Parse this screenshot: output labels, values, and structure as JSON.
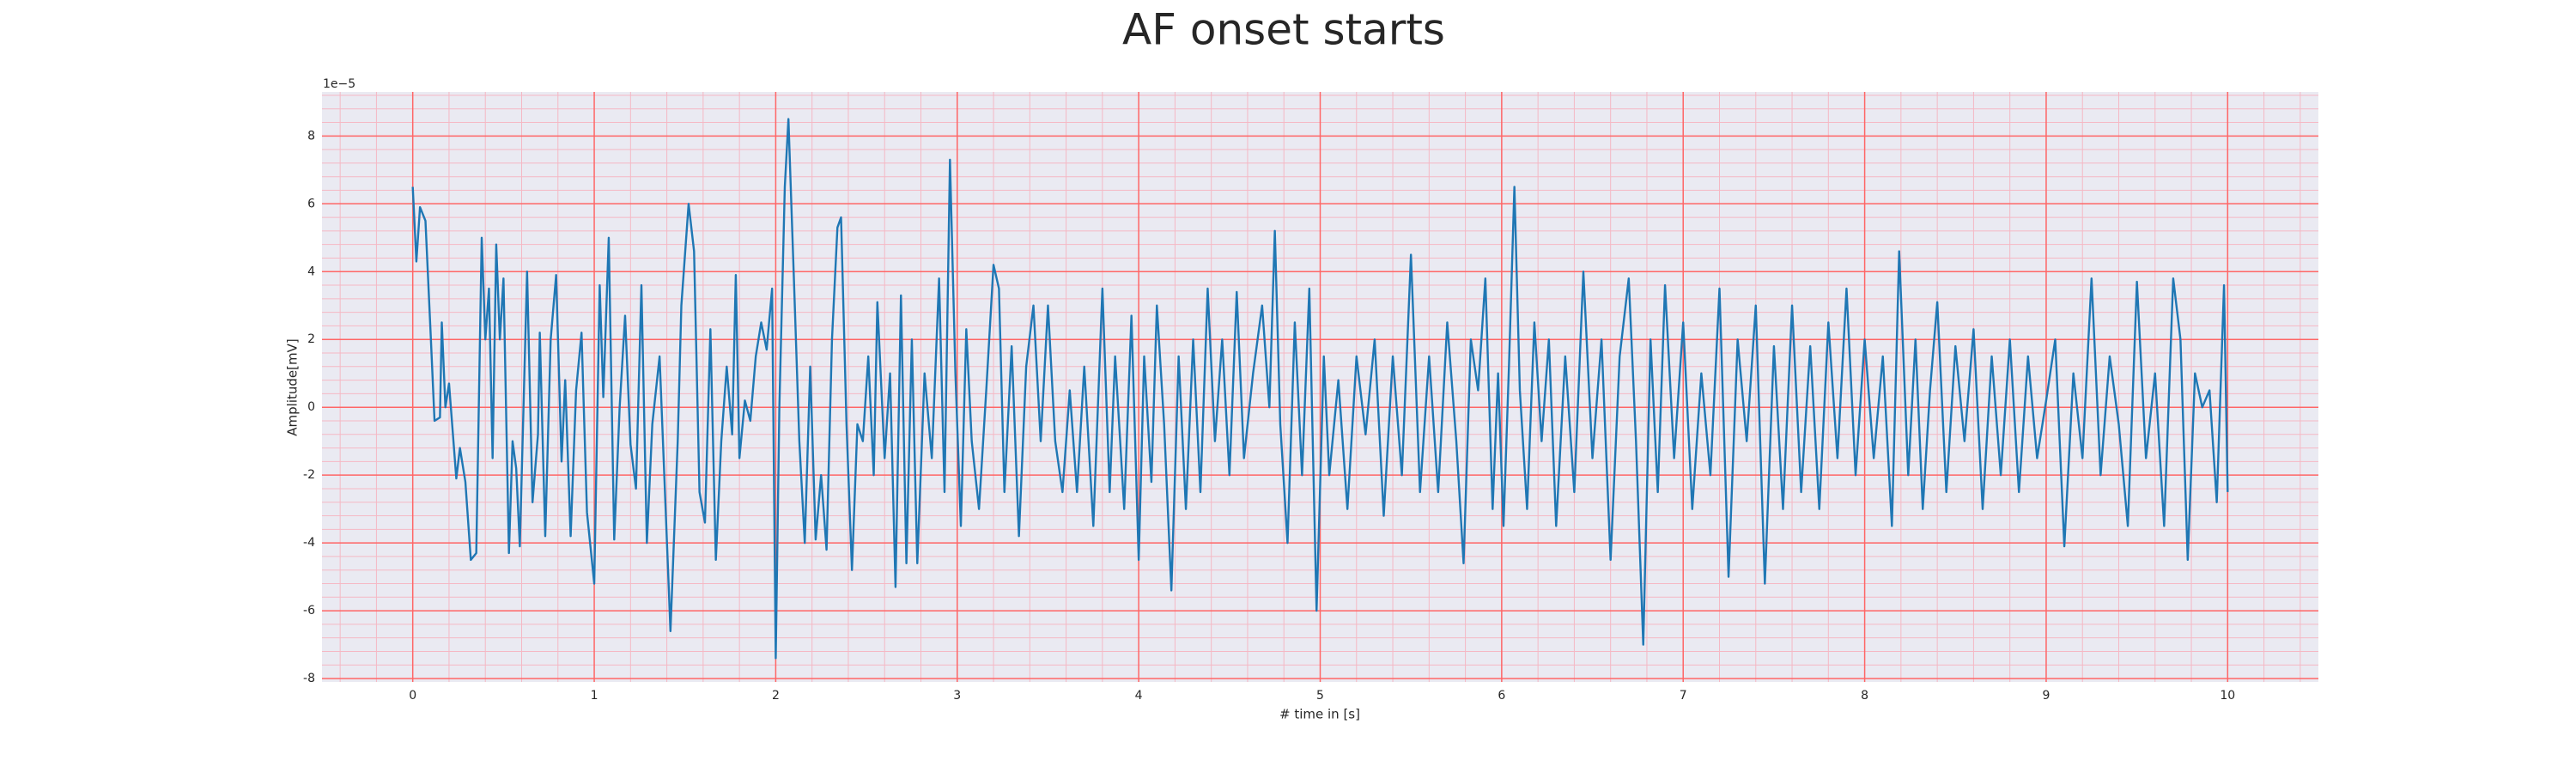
{
  "chart_data": {
    "type": "line",
    "title": "AF onset starts",
    "xlabel": "# time in [s]",
    "ylabel": "Amplitude[mV]",
    "y_offset_label": "1e−5",
    "color": "#1f77b4",
    "background": "#eaeaf2",
    "grid": true,
    "grid_color": "#ff6666",
    "minor_grid_color": "#f5b8c4",
    "xlim": [
      -0.5,
      10.5
    ],
    "ylim": [
      -8.1,
      9.3
    ],
    "xticks": [
      0,
      1,
      2,
      3,
      4,
      5,
      6,
      7,
      8,
      9,
      10
    ],
    "yticks": [
      -8,
      -6,
      -4,
      -2,
      0,
      2,
      4,
      6,
      8
    ],
    "xminorticks": [
      -0.4,
      -0.2,
      0.2,
      0.4,
      0.6,
      0.8,
      1.2,
      1.4,
      1.6,
      1.8,
      2.2,
      2.4,
      2.6,
      2.8,
      3.2,
      3.4,
      3.6,
      3.8,
      4.2,
      4.4,
      4.6,
      4.8,
      5.2,
      5.4,
      5.6,
      5.8,
      6.2,
      6.4,
      6.6,
      6.8,
      7.2,
      7.4,
      7.6,
      7.8,
      8.2,
      8.4,
      8.6,
      8.8,
      9.2,
      9.4,
      9.6,
      9.8,
      10.2,
      10.4
    ],
    "yminorticks": [
      -7.6,
      -7.2,
      -6.8,
      -6.4,
      -5.6,
      -5.2,
      -4.8,
      -4.4,
      -3.6,
      -3.2,
      -2.8,
      -2.4,
      -1.6,
      -1.2,
      -0.8,
      -0.4,
      0.4,
      0.8,
      1.2,
      1.6,
      2.4,
      2.8,
      3.2,
      3.6,
      4.4,
      4.8,
      5.2,
      5.6,
      6.4,
      6.8,
      7.2,
      7.6,
      8.4,
      8.8,
      9.2
    ],
    "x": [
      0,
      0.02,
      0.04,
      0.07,
      0.1,
      0.12,
      0.15,
      0.16,
      0.18,
      0.2,
      0.24,
      0.26,
      0.29,
      0.32,
      0.35,
      0.38,
      0.4,
      0.42,
      0.44,
      0.46,
      0.48,
      0.5,
      0.53,
      0.55,
      0.57,
      0.59,
      0.63,
      0.66,
      0.69,
      0.7,
      0.73,
      0.76,
      0.79,
      0.82,
      0.84,
      0.87,
      0.9,
      0.93,
      0.96,
      1.0,
      1.03,
      1.05,
      1.08,
      1.11,
      1.14,
      1.17,
      1.2,
      1.23,
      1.26,
      1.29,
      1.32,
      1.36,
      1.42,
      1.46,
      1.48,
      1.52,
      1.55,
      1.58,
      1.61,
      1.64,
      1.67,
      1.7,
      1.73,
      1.76,
      1.78,
      1.8,
      1.83,
      1.86,
      1.89,
      1.92,
      1.95,
      1.98,
      2.0,
      2.02,
      2.05,
      2.07,
      2.1,
      2.13,
      2.16,
      2.19,
      2.22,
      2.25,
      2.28,
      2.31,
      2.34,
      2.36,
      2.39,
      2.42,
      2.45,
      2.48,
      2.51,
      2.54,
      2.56,
      2.6,
      2.63,
      2.66,
      2.69,
      2.72,
      2.75,
      2.78,
      2.82,
      2.86,
      2.9,
      2.93,
      2.96,
      2.99,
      3.02,
      3.05,
      3.08,
      3.12,
      3.16,
      3.2,
      3.23,
      3.26,
      3.3,
      3.34,
      3.38,
      3.42,
      3.46,
      3.5,
      3.54,
      3.58,
      3.62,
      3.66,
      3.7,
      3.75,
      3.8,
      3.84,
      3.87,
      3.92,
      3.96,
      4.0,
      4.03,
      4.07,
      4.1,
      4.14,
      4.18,
      4.22,
      4.26,
      4.3,
      4.34,
      4.38,
      4.42,
      4.46,
      4.5,
      4.54,
      4.58,
      4.63,
      4.68,
      4.72,
      4.75,
      4.78,
      4.82,
      4.86,
      4.9,
      4.94,
      4.98,
      5.02,
      5.05,
      5.1,
      5.15,
      5.2,
      5.25,
      5.3,
      5.35,
      5.4,
      5.45,
      5.5,
      5.55,
      5.6,
      5.65,
      5.7,
      5.75,
      5.79,
      5.83,
      5.87,
      5.91,
      5.95,
      5.98,
      6.01,
      6.04,
      6.07,
      6.1,
      6.14,
      6.18,
      6.22,
      6.26,
      6.3,
      6.35,
      6.4,
      6.45,
      6.5,
      6.55,
      6.6,
      6.65,
      6.7,
      6.74,
      6.78,
      6.82,
      6.86,
      6.9,
      6.95,
      7.0,
      7.05,
      7.1,
      7.15,
      7.2,
      7.25,
      7.3,
      7.35,
      7.4,
      7.45,
      7.5,
      7.55,
      7.6,
      7.65,
      7.7,
      7.75,
      7.8,
      7.85,
      7.9,
      7.95,
      8.0,
      8.05,
      8.1,
      8.15,
      8.19,
      8.24,
      8.28,
      8.32,
      8.36,
      8.4,
      8.45,
      8.5,
      8.55,
      8.6,
      8.65,
      8.7,
      8.75,
      8.8,
      8.85,
      8.9,
      8.95,
      9.0,
      9.05,
      9.1,
      9.15,
      9.2,
      9.25,
      9.3,
      9.35,
      9.4,
      9.45,
      9.5,
      9.55,
      9.6,
      9.65,
      9.7,
      9.74,
      9.78,
      9.82,
      9.86,
      9.9,
      9.94,
      9.98,
      10.0
    ],
    "values": [
      6.5,
      4.3,
      5.9,
      5.5,
      2,
      -0.4,
      -0.3,
      2.5,
      0,
      0.7,
      -2.1,
      -1.2,
      -2.2,
      -4.5,
      -4.3,
      5.0,
      2,
      3.5,
      -1.5,
      4.8,
      2,
      3.8,
      -4.3,
      -1,
      -1.8,
      -4.1,
      4.0,
      -2.8,
      -0.8,
      2.2,
      -3.8,
      2,
      3.9,
      -1.6,
      0.8,
      -3.8,
      0.5,
      2.2,
      -3.1,
      -5.2,
      3.6,
      0.3,
      5.0,
      -3.9,
      0,
      2.7,
      -1.1,
      -2.4,
      3.6,
      -4.0,
      -0.5,
      1.5,
      -6.6,
      -1,
      3.0,
      6.0,
      4.6,
      -2.5,
      -3.4,
      2.3,
      -4.5,
      -1,
      1.2,
      -0.8,
      3.9,
      -1.5,
      0.2,
      -0.4,
      1.5,
      2.5,
      1.7,
      3.5,
      -7.4,
      0,
      6.5,
      8.5,
      3.8,
      -1,
      -4.0,
      1.2,
      -3.9,
      -2.0,
      -4.2,
      2.0,
      5.3,
      5.6,
      -0.5,
      -4.8,
      -0.5,
      -1,
      1.5,
      -2,
      3.1,
      -1.5,
      1.0,
      -5.3,
      3.3,
      -4.6,
      2.0,
      -4.6,
      1,
      -1.5,
      3.8,
      -2.5,
      7.3,
      1,
      -3.5,
      2.3,
      -1,
      -3.0,
      0.5,
      4.2,
      3.5,
      -2.5,
      1.8,
      -3.8,
      1.2,
      3.0,
      -1.0,
      3.0,
      -1,
      -2.5,
      0.5,
      -2.5,
      1.2,
      -3.5,
      3.5,
      -2.5,
      1.5,
      -3,
      2.7,
      -4.5,
      1.5,
      -2.2,
      3,
      -0.5,
      -5.4,
      1.5,
      -3.0,
      2.0,
      -2.5,
      3.5,
      -1,
      2.0,
      -2.0,
      3.4,
      -1.5,
      1.0,
      3.0,
      0,
      5.2,
      -0.5,
      -4.0,
      2.5,
      -2.0,
      3.5,
      -6.0,
      1.5,
      -2.0,
      0.8,
      -3.0,
      1.5,
      -0.8,
      2.0,
      -3.2,
      1.5,
      -2.0,
      4.5,
      -2.5,
      1.5,
      -2.5,
      2.5,
      -1,
      -4.6,
      2.0,
      0.5,
      3.8,
      -3.0,
      1.0,
      -3.5,
      1.2,
      6.5,
      0.5,
      -3.0,
      2.5,
      -1,
      2.0,
      -3.5,
      1.5,
      -2.5,
      4.0,
      -1.5,
      2.0,
      -4.5,
      1.5,
      3.8,
      -1.0,
      -7.0,
      2.0,
      -2.5,
      3.6,
      -1.5,
      2.5,
      -3.0,
      1.0,
      -2,
      3.5,
      -5.0,
      2.0,
      -1.0,
      3.0,
      -5.2,
      1.8,
      -3.0,
      3.0,
      -2.5,
      1.8,
      -3.0,
      2.5,
      -1.5,
      3.5,
      -2.0,
      2.0,
      -1.5,
      1.5,
      -3.5,
      4.6,
      -2.0,
      2.0,
      -3.0,
      0.5,
      3.1,
      -2.5,
      1.8,
      -1.0,
      2.3,
      -3.0,
      1.5,
      -2.0,
      2.0,
      -2.5,
      1.5,
      -1.5,
      0.2,
      2.0,
      -4.1,
      1.0,
      -1.5,
      3.8,
      -2.0,
      1.5,
      -0.5,
      -3.5,
      3.7,
      -1.5,
      1.0,
      -3.5,
      3.8,
      2.0,
      -4.5,
      1.0,
      0,
      0.5,
      -2.8,
      3.6,
      -2.5
    ]
  }
}
